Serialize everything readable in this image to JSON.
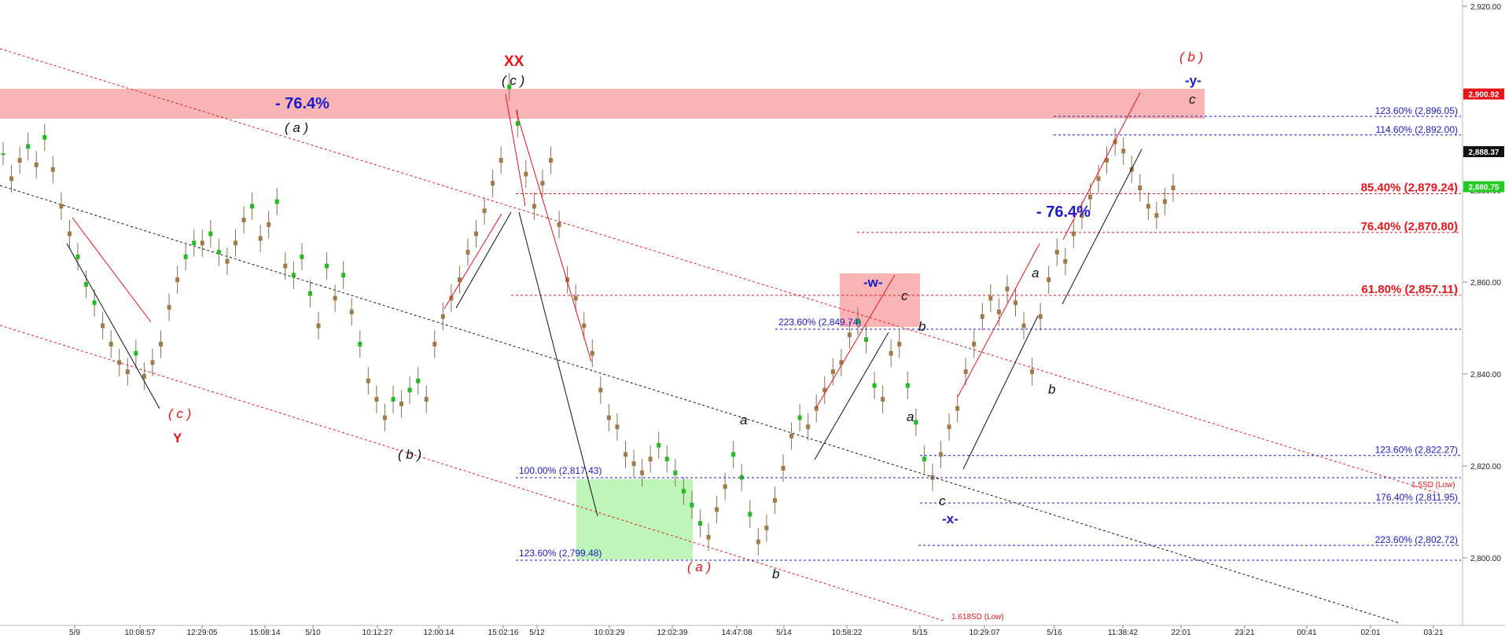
{
  "chart_data": {
    "type": "line",
    "instrument_style": "candlestick-elliott-wave",
    "y_axis": {
      "ticks": [
        "2,920.00",
        "2,880.00",
        "2,860.00",
        "2,840.00",
        "2,820.00",
        "2,800.00"
      ],
      "tick_values": [
        2920,
        2880,
        2860,
        2840,
        2820,
        2800
      ],
      "ylim": [
        2788,
        2921
      ]
    },
    "x_axis": {
      "ticks": [
        "5/9",
        "10:08:57",
        "12:29:05",
        "15:08:14",
        "5/10",
        "10:12:27",
        "12:00:14",
        "15:02:16",
        "5/12",
        "10:03:29",
        "12:02:39",
        "14:47:08",
        "5/14",
        "10:58:22",
        "5/15",
        "10:29:07",
        "5/16",
        "11:38:42",
        "22:01",
        "23:21",
        "00:41",
        "02:01",
        "03:21"
      ]
    },
    "price_badges": [
      {
        "text": "2,900.92",
        "value": 2900.92,
        "bg": "#e8141a",
        "fg": "#ffffff"
      },
      {
        "text": "2,888.37",
        "value": 2888.37,
        "bg": "#111111",
        "fg": "#ffffff"
      },
      {
        "text": "2,880.75",
        "value": 2880.75,
        "bg": "#22cc22",
        "fg": "#ffffff"
      }
    ],
    "fib_levels": [
      {
        "label": "123.60% (2,896.05)",
        "value": 2896.05,
        "color": "#1a1acc",
        "bold": false
      },
      {
        "label": "114.60% (2,892.00)",
        "value": 2892.0,
        "color": "#1a1acc",
        "bold": false
      },
      {
        "label": "85.40% (2,879.24)",
        "value": 2879.24,
        "color": "#e8141a",
        "bold": true
      },
      {
        "label": "76.40% (2,870.80)",
        "value": 2870.8,
        "color": "#e8141a",
        "bold": true
      },
      {
        "label": "61.80% (2,857.11)",
        "value": 2857.11,
        "color": "#e8141a",
        "bold": true
      },
      {
        "label": "123.60% (2,822.27)",
        "value": 2822.27,
        "color": "#1a1acc",
        "bold": false
      },
      {
        "label": "176.40% (2,811.95)",
        "value": 2811.95,
        "color": "#1a1acc",
        "bold": false
      },
      {
        "label": "223.60% (2,802.72)",
        "value": 2802.72,
        "color": "#1a1acc",
        "bold": false
      }
    ],
    "inner_levels": [
      {
        "label": "223.60% (2,849.74)",
        "value": 2849.74,
        "color": "#1a1acc"
      },
      {
        "label": "100.00% (2,817.43)",
        "value": 2817.43,
        "color": "#1a1acc"
      },
      {
        "label": "123.60% (2,799.48)",
        "value": 2799.48,
        "color": "#1a1acc"
      }
    ],
    "channel_notes": [
      "1.5SD (Low)",
      "1.618SD (Low)"
    ],
    "retracement_labels": [
      "- 76.4%",
      "- 76.4%"
    ],
    "wave_labels": {
      "red": [
        "XX",
        "( c )",
        "Y",
        "( a )",
        "( b )"
      ],
      "blue": [
        "-w-",
        "-x-",
        "-y-"
      ],
      "black": [
        "( c )",
        "( a )",
        "( b )",
        "a",
        "b",
        "c",
        "a",
        "b",
        "c",
        "a",
        "b",
        "c"
      ]
    },
    "series": [
      {
        "values": [
          2888,
          2882,
          2886,
          2890,
          2885,
          2892,
          2884,
          2876,
          2870,
          2866,
          2860,
          2856,
          2850,
          2846,
          2842,
          2840,
          2845,
          2839,
          2842,
          2846,
          2854,
          2860,
          2866,
          2869,
          2868,
          2871,
          2867,
          2864,
          2868,
          2873,
          2877,
          2869,
          2872,
          2878,
          2863,
          2862,
          2866,
          2858,
          2850,
          2864,
          2856,
          2862,
          2853,
          2847,
          2838,
          2834,
          2830,
          2835,
          2833,
          2837,
          2839,
          2834,
          2846,
          2852,
          2856,
          2860,
          2866,
          2870,
          2875,
          2881,
          2886,
          2903,
          2895,
          2883,
          2876,
          2881,
          2886,
          2872,
          2860,
          2856,
          2850,
          2844,
          2836,
          2830,
          2828,
          2822,
          2820,
          2818,
          2821,
          2825,
          2822,
          2819,
          2815,
          2812,
          2808,
          2804,
          2810,
          2815,
          2823,
          2818,
          2810,
          2803,
          2806,
          2812,
          2819,
          2826,
          2831,
          2828,
          2832,
          2836,
          2840,
          2842,
          2848,
          2852,
          2848,
          2838,
          2834,
          2844,
          2846,
          2838,
          2830,
          2822,
          2817,
          2822,
          2828,
          2832,
          2840,
          2846,
          2852,
          2856,
          2853,
          2858,
          2855,
          2850,
          2840,
          2852,
          2860,
          2866,
          2864,
          2870,
          2874,
          2878,
          2882,
          2886,
          2890,
          2888,
          2884,
          2880,
          2876,
          2874,
          2877,
          2880
        ]
      },
      {
        "values": [
          2888,
          2883,
          2887,
          2889,
          2886,
          2891,
          2885,
          2877,
          2871,
          2865,
          2859,
          2855,
          2851,
          2847,
          2843,
          2841,
          2844,
          2840,
          2843,
          2847,
          2855,
          2861,
          2865,
          2868,
          2869,
          2870,
          2866,
          2865,
          2869,
          2874,
          2876,
          2870,
          2873,
          2877,
          2864,
          2861,
          2865,
          2857,
          2851,
          2863,
          2857,
          2861,
          2854,
          2846,
          2839,
          2835,
          2831,
          2834,
          2834,
          2836,
          2838,
          2835,
          2847,
          2853,
          2857,
          2861,
          2867,
          2871,
          2876,
          2882,
          2887,
          2902,
          2894,
          2884,
          2877,
          2882,
          2887,
          2873,
          2861,
          2857,
          2851,
          2845,
          2837,
          2831,
          2829,
          2823,
          2821,
          2819,
          2822,
          2824,
          2821,
          2818,
          2814,
          2811,
          2807,
          2805,
          2811,
          2816,
          2822,
          2817,
          2809,
          2804,
          2807,
          2813,
          2820,
          2827,
          2830,
          2829,
          2833,
          2837,
          2841,
          2843,
          2849,
          2851,
          2847,
          2837,
          2835,
          2845,
          2847,
          2837,
          2829,
          2821,
          2818,
          2823,
          2829,
          2833,
          2841,
          2847,
          2853,
          2857,
          2854,
          2859,
          2856,
          2851,
          2841,
          2853,
          2861,
          2867,
          2865,
          2871,
          2875,
          2879,
          2883,
          2887,
          2891,
          2889,
          2885,
          2881,
          2877,
          2875,
          2878,
          2881
        ]
      }
    ]
  }
}
